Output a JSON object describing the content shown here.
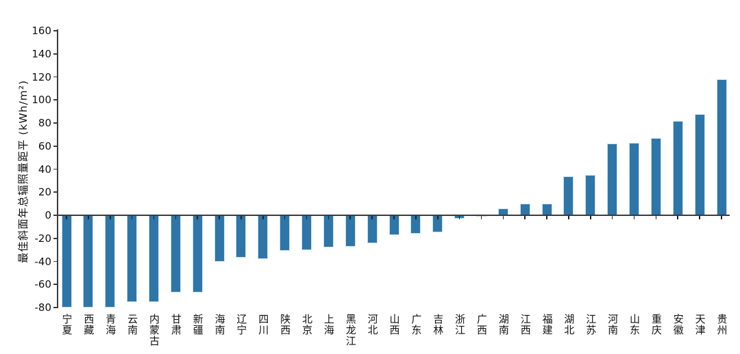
{
  "chart_data": {
    "type": "bar",
    "title": "",
    "xlabel": "",
    "ylabel": "最佳斜面年总辐照量距平 (kWh/m²)",
    "ylim": [
      -80,
      160
    ],
    "yticks": [
      160,
      140,
      120,
      100,
      80,
      60,
      40,
      20,
      0,
      -20,
      -40,
      -60,
      -80
    ],
    "grid": false,
    "legend": "none",
    "bar_color": "#2e75a8",
    "bar_edge_color": "#cbe0ef",
    "axis_color": "#3a3a3a",
    "categories": [
      "宁夏",
      "西藏",
      "青海",
      "云南",
      "内蒙古",
      "甘肃",
      "新疆",
      "海南",
      "辽宁",
      "四川",
      "陕西",
      "北京",
      "上海",
      "黑龙江",
      "河北",
      "山西",
      "广东",
      "吉林",
      "浙江",
      "广西",
      "湖南",
      "江西",
      "福建",
      "湖北",
      "江苏",
      "河南",
      "山东",
      "重庆",
      "安徽",
      "天津",
      "贵州"
    ],
    "values": [
      -80,
      -80,
      -80,
      -75,
      -75,
      -67,
      -67,
      -40,
      -37,
      -38,
      -31,
      -30,
      -28,
      -27,
      -24,
      -17,
      -16,
      -15,
      -3,
      -1,
      6,
      10,
      10,
      34,
      35,
      62,
      63,
      67,
      82,
      88,
      118
    ]
  }
}
